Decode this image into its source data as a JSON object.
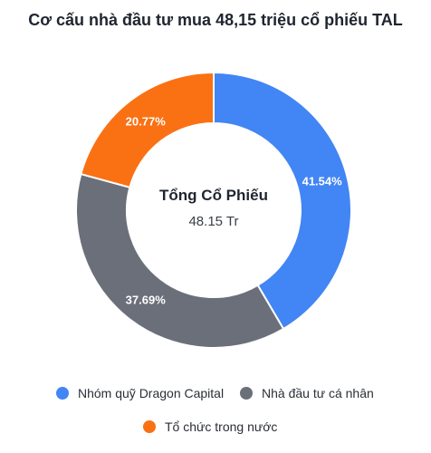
{
  "chart_data": {
    "type": "pie",
    "title": "Cơ cấu nhà đầu tư mua 48,15 triệu cổ phiếu TAL",
    "center_label": "Tổng Cổ Phiếu",
    "center_value": "48.15 Tr",
    "slices": [
      {
        "name": "Nhóm quỹ Dragon Capital",
        "value": 41.54,
        "label": "41.54%",
        "color": "#4285f4"
      },
      {
        "name": "Nhà đầu tư cá nhân",
        "value": 37.69,
        "label": "37.69%",
        "color": "#6b6f7a"
      },
      {
        "name": "Tổ chức trong nước",
        "value": 20.77,
        "label": "20.77%",
        "color": "#fa7113"
      }
    ],
    "legend_position": "bottom"
  }
}
